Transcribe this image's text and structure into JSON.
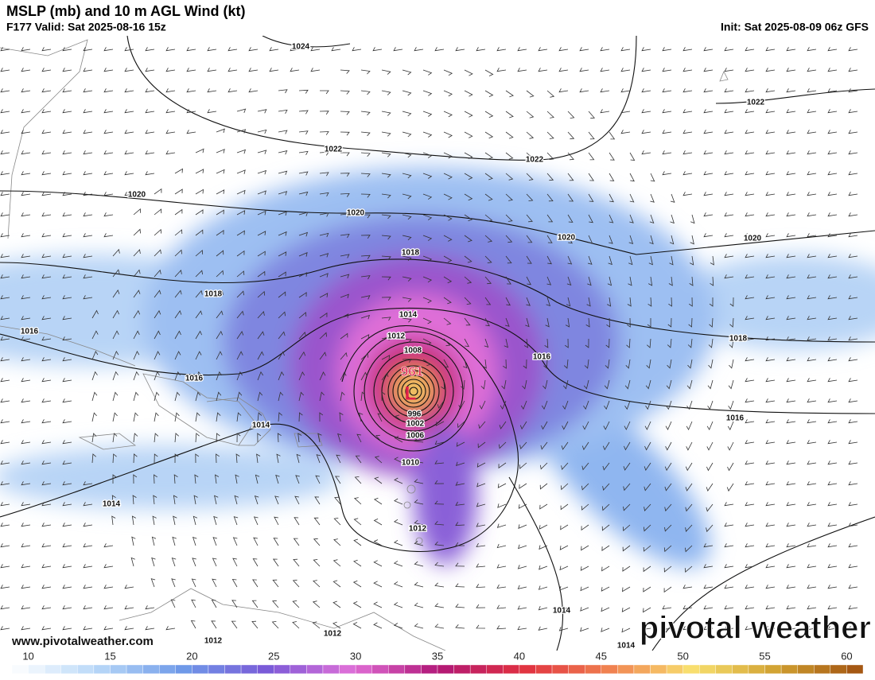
{
  "header": {
    "title": "MSLP (mb) and 10 m AGL Wind (kt)",
    "valid": "F177 Valid: Sat 2025-08-16 15z",
    "init": "Init: Sat 2025-08-09 06z GFS"
  },
  "isobar_labels": [
    1024,
    1022,
    1022,
    1022,
    1020,
    1020,
    1020,
    1020,
    1018,
    1018,
    1018,
    1016,
    1016,
    1016,
    1016,
    1014,
    1014,
    1014,
    1014,
    1014,
    1012,
    1012,
    1012,
    1012,
    1010,
    1008,
    1006,
    1002,
    996
  ],
  "storm": {
    "pressure": "961",
    "symbol": "L"
  },
  "colorbar": {
    "range": [
      9,
      61
    ],
    "ticks": [
      10,
      15,
      20,
      25,
      30,
      35,
      40,
      45,
      50,
      55,
      60
    ],
    "colors": [
      "#ffffff",
      "#b8d8f8",
      "#6f9ae8",
      "#7a5ad8",
      "#e070d8",
      "#b01878",
      "#e03040",
      "#f08050",
      "#f8e070",
      "#d0a030",
      "#a05010"
    ]
  },
  "footer": {
    "website": "www.pivotalweather.com",
    "logo": "pivotal weather"
  }
}
